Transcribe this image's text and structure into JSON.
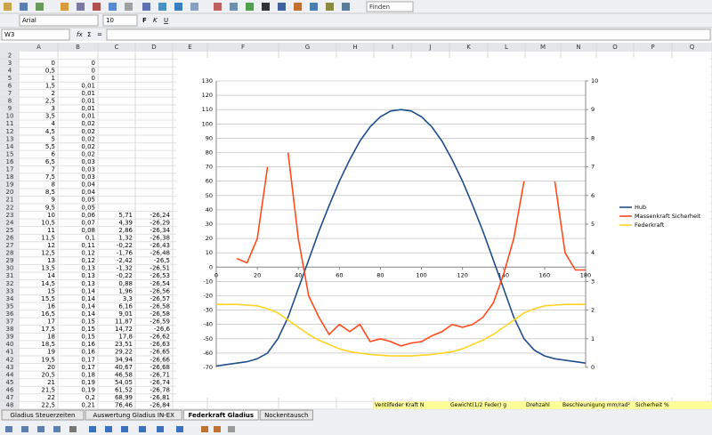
{
  "toolbar": {
    "font_name": "Arial",
    "font_size": "10",
    "format_buttons": [
      "F",
      "K",
      "U"
    ],
    "find": "Finden"
  },
  "formula_bar": {
    "cell_ref": "W3",
    "icons": [
      "fx",
      "Σ",
      "="
    ]
  },
  "sheet": {
    "columns": [
      "A",
      "B",
      "C",
      "D",
      "E",
      "F",
      "G",
      "H",
      "I",
      "J",
      "K",
      "L",
      "M",
      "N",
      "O",
      "P",
      "Q"
    ],
    "rows": [
      [
        "2"
      ],
      [
        "3",
        "0",
        "0"
      ],
      [
        "4",
        "0,5",
        "0"
      ],
      [
        "5",
        "1",
        "0"
      ],
      [
        "6",
        "1,5",
        "0,01"
      ],
      [
        "7",
        "2",
        "0,01"
      ],
      [
        "8",
        "2,5",
        "0,01"
      ],
      [
        "9",
        "3",
        "0,01"
      ],
      [
        "10",
        "3,5",
        "0,01"
      ],
      [
        "11",
        "4",
        "0,02"
      ],
      [
        "12",
        "4,5",
        "0,02"
      ],
      [
        "13",
        "5",
        "0,02"
      ],
      [
        "14",
        "5,5",
        "0,02"
      ],
      [
        "15",
        "6",
        "0,02"
      ],
      [
        "16",
        "6,5",
        "0,03"
      ],
      [
        "17",
        "7",
        "0,03"
      ],
      [
        "18",
        "7,5",
        "0,03"
      ],
      [
        "19",
        "8",
        "0,04"
      ],
      [
        "20",
        "8,5",
        "0,04"
      ],
      [
        "21",
        "9",
        "0,05"
      ],
      [
        "22",
        "9,5",
        "0,05"
      ],
      [
        "23",
        "10",
        "0,06",
        "5,71",
        "-26,24"
      ],
      [
        "24",
        "10,5",
        "0,07",
        "4,39",
        "-26,29"
      ],
      [
        "25",
        "11",
        "0,08",
        "2,86",
        "-26,34"
      ],
      [
        "26",
        "11,5",
        "0,1",
        "1,32",
        "-26,38"
      ],
      [
        "27",
        "12",
        "0,11",
        "-0,22",
        "-26,43"
      ],
      [
        "28",
        "12,5",
        "0,12",
        "-1,76",
        "-26,48"
      ],
      [
        "29",
        "13",
        "0,12",
        "-2,42",
        "-26,5"
      ],
      [
        "30",
        "13,5",
        "0,13",
        "-1,32",
        "-26,51"
      ],
      [
        "31",
        "14",
        "0,13",
        "-0,22",
        "-26,53"
      ],
      [
        "32",
        "14,5",
        "0,13",
        "0,88",
        "-26,54"
      ],
      [
        "33",
        "15",
        "0,14",
        "1,96",
        "-26,56"
      ],
      [
        "34",
        "15,5",
        "0,14",
        "3,3",
        "-26,57"
      ],
      [
        "35",
        "16",
        "0,14",
        "6,16",
        "-26,58"
      ],
      [
        "36",
        "16,5",
        "0,14",
        "9,01",
        "-26,58"
      ],
      [
        "37",
        "17",
        "0,15",
        "11,87",
        "-26,59"
      ],
      [
        "38",
        "17,5",
        "0,15",
        "14,72",
        "-26,6"
      ],
      [
        "39",
        "18",
        "0,15",
        "17,8",
        "-26,62"
      ],
      [
        "40",
        "18,5",
        "0,16",
        "23,51",
        "-26,63"
      ],
      [
        "41",
        "19",
        "0,16",
        "29,22",
        "-26,65"
      ],
      [
        "42",
        "19,5",
        "0,17",
        "34,94",
        "-26,66"
      ],
      [
        "43",
        "20",
        "0,17",
        "40,67",
        "-26,68"
      ],
      [
        "44",
        "20,5",
        "0,18",
        "46,58",
        "-26,71"
      ],
      [
        "45",
        "21",
        "0,19",
        "54,05",
        "-26,74"
      ],
      [
        "46",
        "21,5",
        "0,19",
        "61,52",
        "-26,78"
      ],
      [
        "47",
        "22",
        "0,2",
        "68,99",
        "-26,81"
      ],
      [
        "48",
        "22,5",
        "0,21",
        "76,46",
        "-26,84"
      ]
    ],
    "row48_labels": [
      "Ventilfeder Kraft N",
      "Gewicht(1/2 Feder) g",
      "Drehzahl",
      "Beschleunigung mm/rad²",
      "Sicherheit %"
    ],
    "tabs": [
      "Gladius Steuerzeiten",
      "Auswertung Gladius IN-EX",
      "Federkraft Gladius",
      "Nockentausch"
    ],
    "active_tab": 2
  },
  "chart_data": {
    "type": "line",
    "x": [
      0,
      5,
      10,
      15,
      20,
      25,
      30,
      35,
      40,
      45,
      50,
      55,
      60,
      65,
      70,
      75,
      80,
      85,
      90,
      95,
      100,
      105,
      110,
      115,
      120,
      125,
      130,
      135,
      140,
      145,
      150,
      155,
      160,
      165,
      170,
      175,
      180
    ],
    "series": [
      {
        "name": "Hub",
        "color": "#1f4e8c",
        "values": [
          -69,
          -68,
          -67,
          -66,
          -64,
          -60,
          -50,
          -35,
          -15,
          5,
          25,
          43,
          60,
          75,
          88,
          98,
          105,
          109,
          110,
          109,
          105,
          98,
          88,
          75,
          60,
          43,
          25,
          5,
          -15,
          -35,
          -50,
          -58,
          -62,
          -64,
          -65,
          -66,
          -67
        ]
      },
      {
        "name": "Massenkraft Sicherheit",
        "color": "#ff4a1c",
        "values": [
          null,
          null,
          6,
          3,
          20,
          70,
          null,
          80,
          20,
          -20,
          -35,
          -47,
          -40,
          -45,
          -40,
          -52,
          -50,
          -52,
          -55,
          -53,
          -52,
          -48,
          -45,
          -40,
          -42,
          -40,
          -35,
          -25,
          -5,
          20,
          60,
          null,
          null,
          60,
          10,
          -2,
          -2
        ]
      },
      {
        "name": "Federkraft",
        "color": "#ffd320",
        "values": [
          -26,
          -26,
          -26,
          -26.5,
          -27,
          -29,
          -32,
          -37,
          -42,
          -47,
          -51,
          -54,
          -57,
          -59,
          -60,
          -61,
          -61.5,
          -62,
          -62,
          -62,
          -61.5,
          -61,
          -60,
          -59,
          -57,
          -54,
          -51,
          -47,
          -42,
          -37,
          -32,
          -29,
          -27,
          -26.5,
          -26,
          -26,
          -26
        ]
      }
    ],
    "xlim": [
      0,
      180
    ],
    "xticks": [
      0,
      20,
      40,
      60,
      80,
      100,
      120,
      140,
      160,
      180
    ],
    "ylim": [
      -70,
      130
    ],
    "yticks": [
      -70,
      -60,
      -50,
      -40,
      -30,
      -20,
      -10,
      0,
      10,
      20,
      30,
      40,
      50,
      60,
      70,
      80,
      90,
      100,
      110,
      120,
      130
    ],
    "y2lim": [
      0,
      10
    ],
    "y2ticks": [
      0,
      1,
      2,
      3,
      4,
      5,
      6,
      7,
      8,
      9,
      10
    ],
    "grid": true,
    "legend": "right"
  }
}
